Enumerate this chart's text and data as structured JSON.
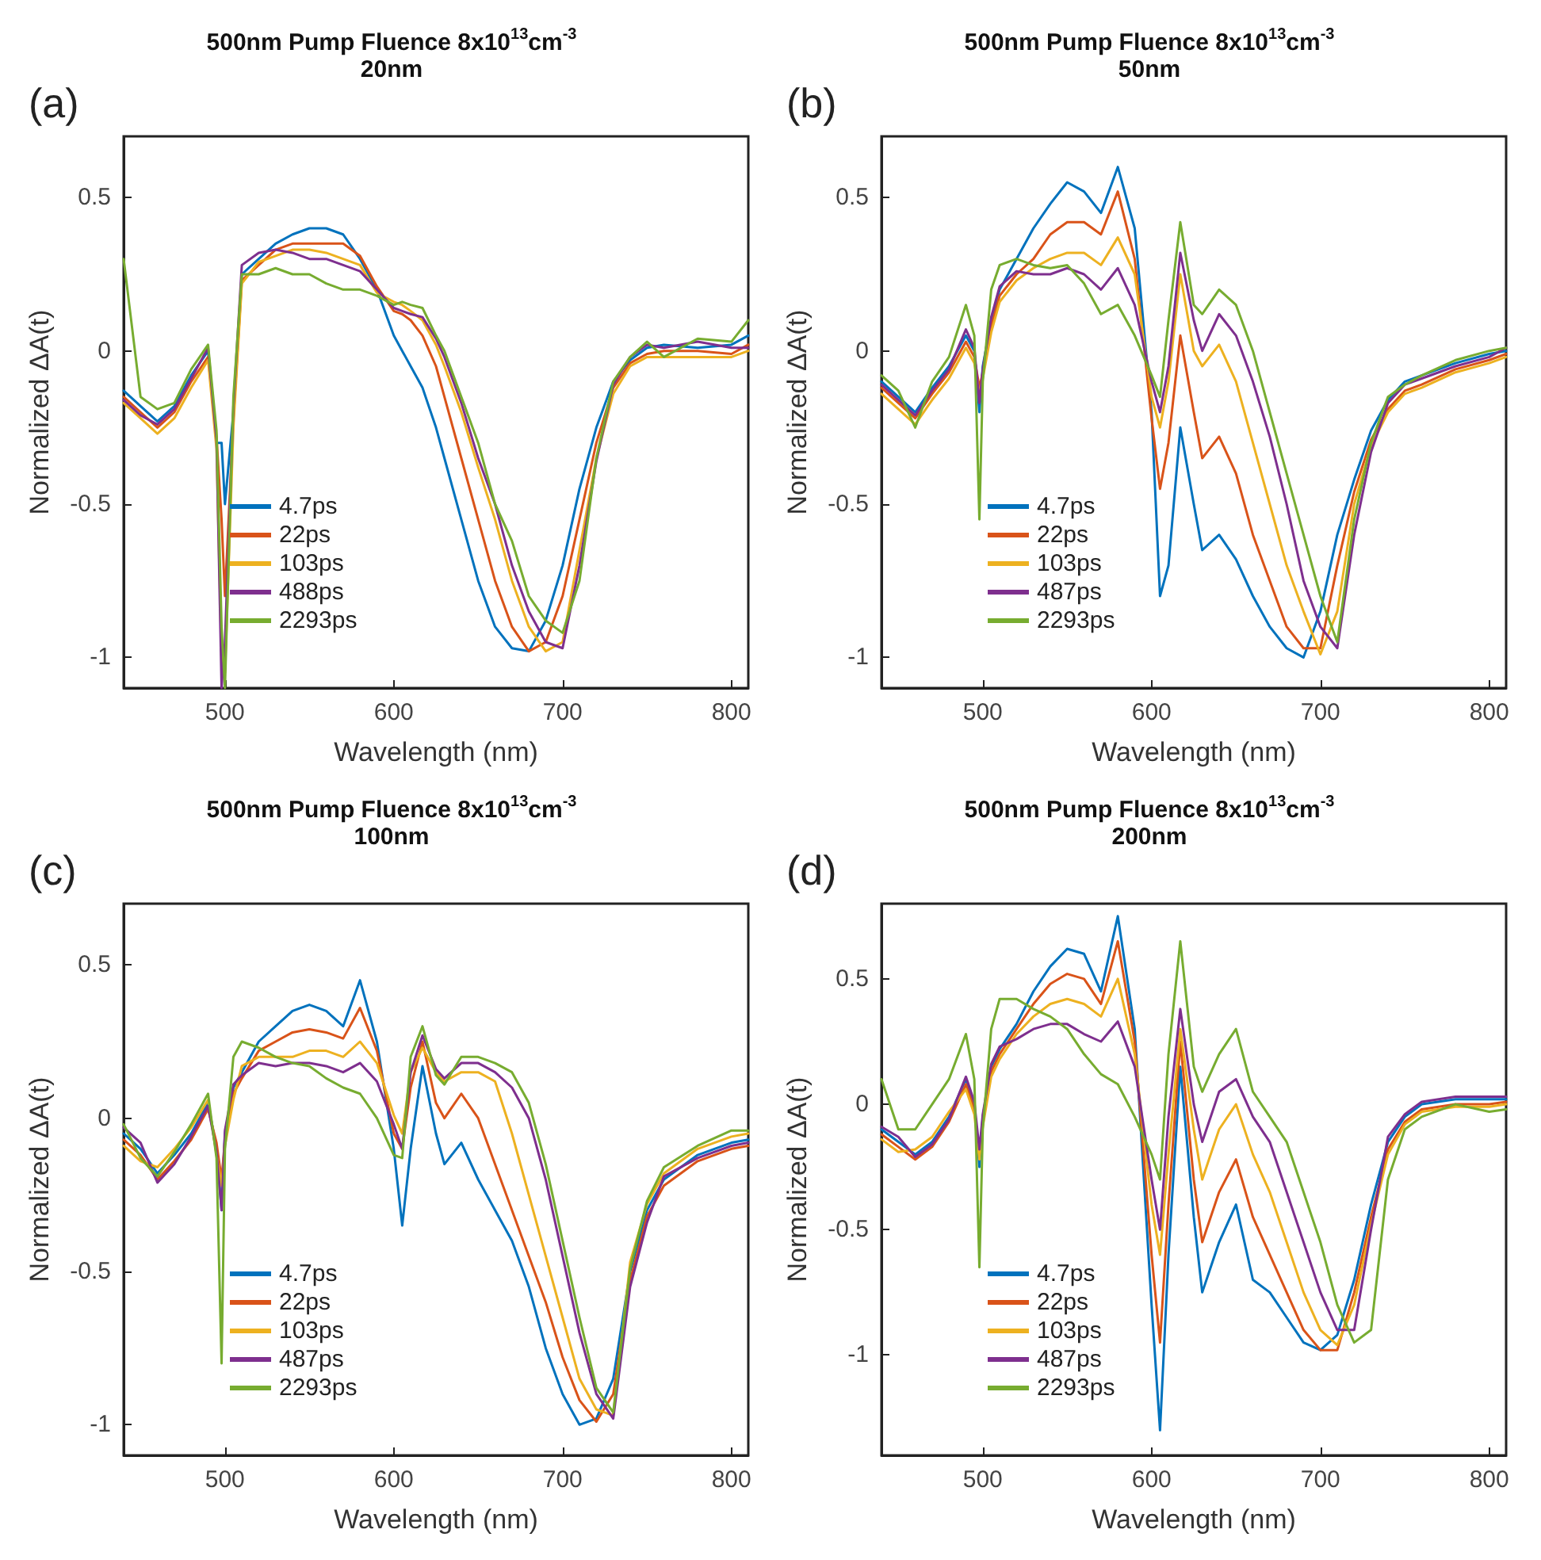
{
  "chart_data": [
    {
      "type": "line",
      "title": "500nm Pump Fluence 8x10$^{13}$cm$^{-3}$",
      "subtitle": "20nm",
      "annotations": [
        "(a)"
      ],
      "xlabel": "Wavelength (nm)",
      "ylabel": "Normalized ΔA(t)",
      "legend": "bottom left",
      "xlim": [
        440,
        810
      ],
      "ylim": [
        -1.1,
        0.7
      ],
      "xticks": [
        500,
        600,
        700,
        800
      ],
      "yticks": [
        -1,
        -0.5,
        0,
        0.5
      ],
      "x": [
        440,
        450,
        460,
        470,
        480,
        490,
        495,
        498,
        500,
        505,
        510,
        520,
        530,
        540,
        550,
        560,
        570,
        580,
        590,
        600,
        605,
        610,
        617,
        625,
        630,
        640,
        650,
        660,
        670,
        680,
        690,
        700,
        710,
        720,
        730,
        740,
        750,
        760,
        780,
        800,
        810
      ],
      "series": [
        {
          "name": "4.7ps",
          "color": "#0072bd",
          "values": [
            -0.13,
            -0.18,
            -0.23,
            -0.18,
            -0.08,
            0,
            -0.3,
            -0.3,
            -0.5,
            -0.2,
            0.25,
            0.3,
            0.35,
            0.38,
            0.4,
            0.4,
            0.38,
            0.3,
            0.2,
            0.05,
            0,
            -0.05,
            -0.12,
            -0.25,
            -0.35,
            -0.55,
            -0.75,
            -0.9,
            -0.97,
            -0.98,
            -0.88,
            -0.7,
            -0.45,
            -0.25,
            -0.1,
            -0.03,
            0.01,
            0.02,
            0.01,
            0.02,
            0.05
          ]
        },
        {
          "name": "22ps",
          "color": "#d95319",
          "values": [
            -0.15,
            -0.2,
            -0.25,
            -0.2,
            -0.1,
            -0.02,
            -0.28,
            -0.55,
            -0.8,
            -0.22,
            0.23,
            0.28,
            0.33,
            0.35,
            0.35,
            0.35,
            0.35,
            0.31,
            0.21,
            0.13,
            0.12,
            0.1,
            0.05,
            -0.05,
            -0.15,
            -0.35,
            -0.55,
            -0.75,
            -0.9,
            -0.98,
            -0.95,
            -0.8,
            -0.55,
            -0.3,
            -0.12,
            -0.04,
            -0.01,
            0,
            0,
            -0.01,
            0.02
          ]
        },
        {
          "name": "103ps",
          "color": "#edb120",
          "values": [
            -0.17,
            -0.22,
            -0.27,
            -0.22,
            -0.12,
            -0.03,
            -0.32,
            -1.0,
            -1.05,
            -0.25,
            0.22,
            0.29,
            0.31,
            0.33,
            0.33,
            0.32,
            0.3,
            0.28,
            0.19,
            0.16,
            0.15,
            0.13,
            0.1,
            0.02,
            -0.05,
            -0.2,
            -0.38,
            -0.55,
            -0.75,
            -0.9,
            -0.98,
            -0.95,
            -0.65,
            -0.35,
            -0.14,
            -0.05,
            -0.02,
            -0.02,
            -0.02,
            -0.02,
            0
          ]
        },
        {
          "name": "488ps",
          "color": "#7e2f8e",
          "values": [
            -0.16,
            -0.21,
            -0.24,
            -0.19,
            -0.09,
            0.01,
            -0.29,
            -1.1,
            -0.95,
            -0.18,
            0.28,
            0.32,
            0.33,
            0.32,
            0.3,
            0.3,
            0.28,
            0.26,
            0.2,
            0.14,
            0.13,
            0.12,
            0.11,
            0.04,
            -0.02,
            -0.17,
            -0.35,
            -0.5,
            -0.7,
            -0.85,
            -0.95,
            -0.97,
            -0.7,
            -0.36,
            -0.11,
            -0.02,
            0.02,
            0.01,
            0.03,
            0.01,
            0.01
          ]
        },
        {
          "name": "2293ps",
          "color": "#77ac30",
          "values": [
            0.3,
            -0.15,
            -0.19,
            -0.17,
            -0.06,
            0.02,
            -0.26,
            -0.9,
            -1.1,
            -0.15,
            0.25,
            0.25,
            0.27,
            0.25,
            0.25,
            0.22,
            0.2,
            0.2,
            0.18,
            0.15,
            0.16,
            0.15,
            0.14,
            0.05,
            0,
            -0.15,
            -0.3,
            -0.5,
            -0.62,
            -0.8,
            -0.88,
            -0.92,
            -0.75,
            -0.35,
            -0.1,
            -0.02,
            0.03,
            -0.02,
            0.04,
            0.03,
            0.1
          ]
        }
      ]
    },
    {
      "type": "line",
      "title": "500nm Pump Fluence 8x10$^{13}$cm$^{-3}$",
      "subtitle": "50nm",
      "annotations": [
        "(b)"
      ],
      "xlabel": "Wavelength (nm)",
      "ylabel": "Normalized ΔA(t)",
      "legend": "bottom left",
      "xlim": [
        440,
        810
      ],
      "ylim": [
        -1.1,
        0.7
      ],
      "xticks": [
        500,
        600,
        700,
        800
      ],
      "yticks": [
        -1,
        -0.5,
        0,
        0.5
      ],
      "x": [
        440,
        450,
        460,
        470,
        480,
        490,
        495,
        498,
        500,
        505,
        510,
        520,
        530,
        540,
        550,
        560,
        570,
        580,
        590,
        600,
        605,
        610,
        617,
        625,
        630,
        640,
        650,
        660,
        670,
        680,
        690,
        700,
        710,
        720,
        730,
        740,
        750,
        760,
        780,
        800,
        810
      ],
      "series": [
        {
          "name": "4.7ps",
          "color": "#0072bd",
          "values": [
            -0.1,
            -0.15,
            -0.2,
            -0.12,
            -0.05,
            0.05,
            0,
            -0.2,
            -0.05,
            0.1,
            0.2,
            0.3,
            0.4,
            0.48,
            0.55,
            0.52,
            0.45,
            0.6,
            0.4,
            -0.2,
            -0.8,
            -0.7,
            -0.25,
            -0.5,
            -0.65,
            -0.6,
            -0.68,
            -0.8,
            -0.9,
            -0.97,
            -1,
            -0.85,
            -0.6,
            -0.42,
            -0.26,
            -0.16,
            -0.1,
            -0.08,
            -0.04,
            -0.01,
            0
          ]
        },
        {
          "name": "22ps",
          "color": "#d95319",
          "values": [
            -0.12,
            -0.17,
            -0.22,
            -0.14,
            -0.07,
            0.03,
            -0.02,
            -0.12,
            -0.07,
            0.08,
            0.18,
            0.25,
            0.3,
            0.38,
            0.42,
            0.42,
            0.38,
            0.52,
            0.3,
            -0.22,
            -0.45,
            -0.3,
            0.05,
            -0.2,
            -0.35,
            -0.28,
            -0.4,
            -0.6,
            -0.75,
            -0.9,
            -0.97,
            -0.97,
            -0.7,
            -0.46,
            -0.29,
            -0.19,
            -0.13,
            -0.11,
            -0.06,
            -0.03,
            -0.01
          ]
        },
        {
          "name": "103ps",
          "color": "#edb120",
          "values": [
            -0.14,
            -0.19,
            -0.24,
            -0.16,
            -0.09,
            0.01,
            -0.04,
            -0.14,
            -0.09,
            0.06,
            0.16,
            0.23,
            0.27,
            0.3,
            0.32,
            0.32,
            0.28,
            0.37,
            0.25,
            -0.15,
            -0.25,
            -0.1,
            0.25,
            0,
            -0.05,
            0.02,
            -0.1,
            -0.3,
            -0.5,
            -0.7,
            -0.85,
            -0.99,
            -0.85,
            -0.5,
            -0.31,
            -0.2,
            -0.14,
            -0.12,
            -0.07,
            -0.04,
            -0.02
          ]
        },
        {
          "name": "487ps",
          "color": "#7e2f8e",
          "values": [
            -0.11,
            -0.16,
            -0.21,
            -0.13,
            -0.06,
            0.07,
            0.01,
            -0.17,
            -0.06,
            0.11,
            0.21,
            0.26,
            0.25,
            0.25,
            0.27,
            0.25,
            0.2,
            0.27,
            0.15,
            -0.1,
            -0.2,
            -0.05,
            0.32,
            0.1,
            0,
            0.12,
            0.05,
            -0.1,
            -0.28,
            -0.5,
            -0.75,
            -0.9,
            -0.97,
            -0.6,
            -0.33,
            -0.17,
            -0.11,
            -0.09,
            -0.05,
            -0.02,
            0.01
          ]
        },
        {
          "name": "2293ps",
          "color": "#77ac30",
          "values": [
            -0.08,
            -0.13,
            -0.25,
            -0.1,
            -0.02,
            0.15,
            0.05,
            -0.55,
            -0.1,
            0.2,
            0.28,
            0.3,
            0.28,
            0.27,
            0.28,
            0.22,
            0.12,
            0.15,
            0.05,
            -0.08,
            -0.15,
            0.1,
            0.42,
            0.15,
            0.12,
            0.2,
            0.15,
            0,
            -0.2,
            -0.4,
            -0.6,
            -0.8,
            -0.95,
            -0.55,
            -0.3,
            -0.15,
            -0.11,
            -0.08,
            -0.03,
            0,
            0.01
          ]
        }
      ]
    },
    {
      "type": "line",
      "title": "500nm Pump Fluence 8x10$^{13}$cm$^{-3}$",
      "subtitle": "100nm",
      "annotations": [
        "(c)"
      ],
      "xlabel": "Wavelength (nm)",
      "ylabel": "Normalized ΔA(t)",
      "legend": "bottom left",
      "xlim": [
        440,
        810
      ],
      "ylim": [
        -1.1,
        0.7
      ],
      "xticks": [
        500,
        600,
        700,
        800
      ],
      "yticks": [
        -1,
        -0.5,
        0,
        0.5
      ],
      "x": [
        440,
        450,
        460,
        470,
        480,
        490,
        495,
        498,
        500,
        505,
        510,
        520,
        530,
        540,
        550,
        560,
        570,
        580,
        590,
        600,
        605,
        610,
        617,
        625,
        630,
        640,
        650,
        660,
        670,
        680,
        690,
        700,
        710,
        720,
        730,
        740,
        750,
        760,
        780,
        800,
        810
      ],
      "series": [
        {
          "name": "4.7ps",
          "color": "#0072bd",
          "values": [
            -0.05,
            -0.1,
            -0.18,
            -0.12,
            -0.05,
            0.05,
            -0.1,
            -0.3,
            -0.05,
            0.1,
            0.15,
            0.25,
            0.3,
            0.35,
            0.37,
            0.35,
            0.3,
            0.45,
            0.25,
            -0.1,
            -0.35,
            -0.1,
            0.17,
            -0.05,
            -0.15,
            -0.08,
            -0.2,
            -0.3,
            -0.4,
            -0.55,
            -0.75,
            -0.9,
            -1,
            -0.98,
            -0.85,
            -0.5,
            -0.3,
            -0.2,
            -0.12,
            -0.08,
            -0.07
          ]
        },
        {
          "name": "22ps",
          "color": "#d95319",
          "values": [
            -0.07,
            -0.12,
            -0.2,
            -0.14,
            -0.07,
            0.03,
            -0.08,
            -0.2,
            -0.07,
            0.08,
            0.13,
            0.22,
            0.25,
            0.28,
            0.29,
            0.28,
            0.26,
            0.36,
            0.22,
            -0.05,
            -0.1,
            0.1,
            0.25,
            0.05,
            0,
            0.08,
            0,
            -0.15,
            -0.3,
            -0.45,
            -0.6,
            -0.78,
            -0.92,
            -0.99,
            -0.9,
            -0.53,
            -0.32,
            -0.22,
            -0.14,
            -0.1,
            -0.09
          ]
        },
        {
          "name": "103ps",
          "color": "#edb120",
          "values": [
            -0.09,
            -0.14,
            -0.16,
            -0.1,
            -0.03,
            0.06,
            -0.12,
            -0.22,
            -0.09,
            0.06,
            0.17,
            0.2,
            0.2,
            0.2,
            0.22,
            0.22,
            0.2,
            0.25,
            0.18,
            0.01,
            -0.05,
            0.15,
            0.23,
            0.15,
            0.12,
            0.15,
            0.15,
            0.12,
            -0.05,
            -0.25,
            -0.45,
            -0.65,
            -0.85,
            -0.95,
            -0.97,
            -0.47,
            -0.28,
            -0.18,
            -0.1,
            -0.06,
            -0.05
          ]
        },
        {
          "name": "487ps",
          "color": "#7e2f8e",
          "values": [
            -0.03,
            -0.08,
            -0.21,
            -0.15,
            -0.06,
            0.04,
            -0.11,
            -0.3,
            -0.04,
            0.11,
            0.14,
            0.18,
            0.17,
            0.18,
            0.18,
            0.17,
            0.15,
            0.18,
            0.12,
            -0.02,
            -0.1,
            0.15,
            0.27,
            0.16,
            0.13,
            0.18,
            0.18,
            0.15,
            0.1,
            0,
            -0.2,
            -0.45,
            -0.7,
            -0.9,
            -0.98,
            -0.55,
            -0.34,
            -0.19,
            -0.13,
            -0.09,
            -0.08
          ]
        },
        {
          "name": "2293ps",
          "color": "#77ac30",
          "values": [
            -0.02,
            -0.13,
            -0.19,
            -0.11,
            -0.02,
            0.08,
            -0.13,
            -0.8,
            -0.1,
            0.2,
            0.25,
            0.23,
            0.2,
            0.18,
            0.17,
            0.13,
            0.1,
            0.08,
            0,
            -0.12,
            -0.13,
            0.2,
            0.3,
            0.14,
            0.11,
            0.2,
            0.2,
            0.18,
            0.15,
            0.05,
            -0.15,
            -0.4,
            -0.65,
            -0.88,
            -0.96,
            -0.49,
            -0.27,
            -0.16,
            -0.09,
            -0.04,
            -0.04
          ]
        }
      ]
    },
    {
      "type": "line",
      "title": "500nm Pump Fluence 8x10$^{13}$cm$^{-3}$",
      "subtitle": "200nm",
      "annotations": [
        "(d)"
      ],
      "xlabel": "Wavelength (nm)",
      "ylabel": "Normalized ΔA(t)",
      "legend": "bottom left",
      "xlim": [
        440,
        810
      ],
      "ylim": [
        -1.4,
        0.8
      ],
      "xticks": [
        500,
        600,
        700,
        800
      ],
      "yticks": [
        -1,
        -0.5,
        0,
        0.5
      ],
      "x": [
        440,
        450,
        460,
        470,
        480,
        490,
        495,
        498,
        500,
        505,
        510,
        520,
        530,
        540,
        550,
        560,
        570,
        580,
        590,
        600,
        605,
        610,
        617,
        625,
        630,
        640,
        650,
        660,
        670,
        680,
        690,
        700,
        710,
        720,
        730,
        740,
        750,
        760,
        780,
        800,
        810
      ],
      "series": [
        {
          "name": "4.7ps",
          "color": "#0072bd",
          "values": [
            -0.1,
            -0.15,
            -0.2,
            -0.15,
            -0.05,
            0.1,
            0,
            -0.25,
            -0.05,
            0.15,
            0.22,
            0.32,
            0.45,
            0.55,
            0.62,
            0.6,
            0.45,
            0.75,
            0.3,
            -0.8,
            -1.3,
            -0.6,
            0.15,
            -0.45,
            -0.75,
            -0.55,
            -0.4,
            -0.7,
            -0.75,
            -0.85,
            -0.95,
            -0.98,
            -0.92,
            -0.7,
            -0.4,
            -0.15,
            -0.05,
            0,
            0.02,
            0.02,
            0.02
          ]
        },
        {
          "name": "22ps",
          "color": "#d95319",
          "values": [
            -0.12,
            -0.17,
            -0.22,
            -0.17,
            -0.07,
            0.08,
            -0.02,
            -0.2,
            -0.07,
            0.13,
            0.2,
            0.3,
            0.4,
            0.48,
            0.52,
            0.5,
            0.4,
            0.65,
            0.25,
            -0.6,
            -0.95,
            -0.4,
            0.25,
            -0.3,
            -0.55,
            -0.35,
            -0.22,
            -0.45,
            -0.6,
            -0.75,
            -0.9,
            -0.98,
            -0.98,
            -0.75,
            -0.45,
            -0.18,
            -0.07,
            -0.02,
            0,
            0,
            0.01
          ]
        },
        {
          "name": "103ps",
          "color": "#edb120",
          "values": [
            -0.14,
            -0.19,
            -0.18,
            -0.13,
            -0.03,
            0.06,
            -0.04,
            -0.22,
            -0.09,
            0.11,
            0.18,
            0.28,
            0.35,
            0.4,
            0.42,
            0.4,
            0.35,
            0.5,
            0.2,
            -0.4,
            -0.6,
            -0.2,
            0.3,
            -0.1,
            -0.3,
            -0.1,
            0,
            -0.2,
            -0.35,
            -0.55,
            -0.75,
            -0.9,
            -0.96,
            -0.8,
            -0.48,
            -0.2,
            -0.08,
            -0.03,
            -0.01,
            -0.01,
            0
          ]
        },
        {
          "name": "487ps",
          "color": "#7e2f8e",
          "values": [
            -0.09,
            -0.13,
            -0.21,
            -0.16,
            -0.06,
            0.11,
            0.01,
            -0.18,
            -0.04,
            0.16,
            0.23,
            0.26,
            0.3,
            0.32,
            0.32,
            0.28,
            0.25,
            0.33,
            0.15,
            -0.3,
            -0.5,
            -0.05,
            0.38,
            0,
            -0.15,
            0.05,
            0.1,
            -0.05,
            -0.15,
            -0.35,
            -0.55,
            -0.75,
            -0.9,
            -0.9,
            -0.5,
            -0.13,
            -0.04,
            0.01,
            0.03,
            0.03,
            0.03
          ]
        },
        {
          "name": "2293ps",
          "color": "#77ac30",
          "values": [
            0.1,
            -0.1,
            -0.1,
            0,
            0.1,
            0.28,
            0.1,
            -0.65,
            -0.1,
            0.3,
            0.42,
            0.42,
            0.38,
            0.35,
            0.3,
            0.2,
            0.12,
            0.08,
            -0.05,
            -0.2,
            -0.3,
            0.2,
            0.65,
            0.15,
            0.05,
            0.2,
            0.3,
            0.05,
            -0.05,
            -0.15,
            -0.35,
            -0.55,
            -0.8,
            -0.95,
            -0.9,
            -0.3,
            -0.1,
            -0.05,
            0,
            -0.03,
            -0.02
          ]
        }
      ]
    }
  ]
}
